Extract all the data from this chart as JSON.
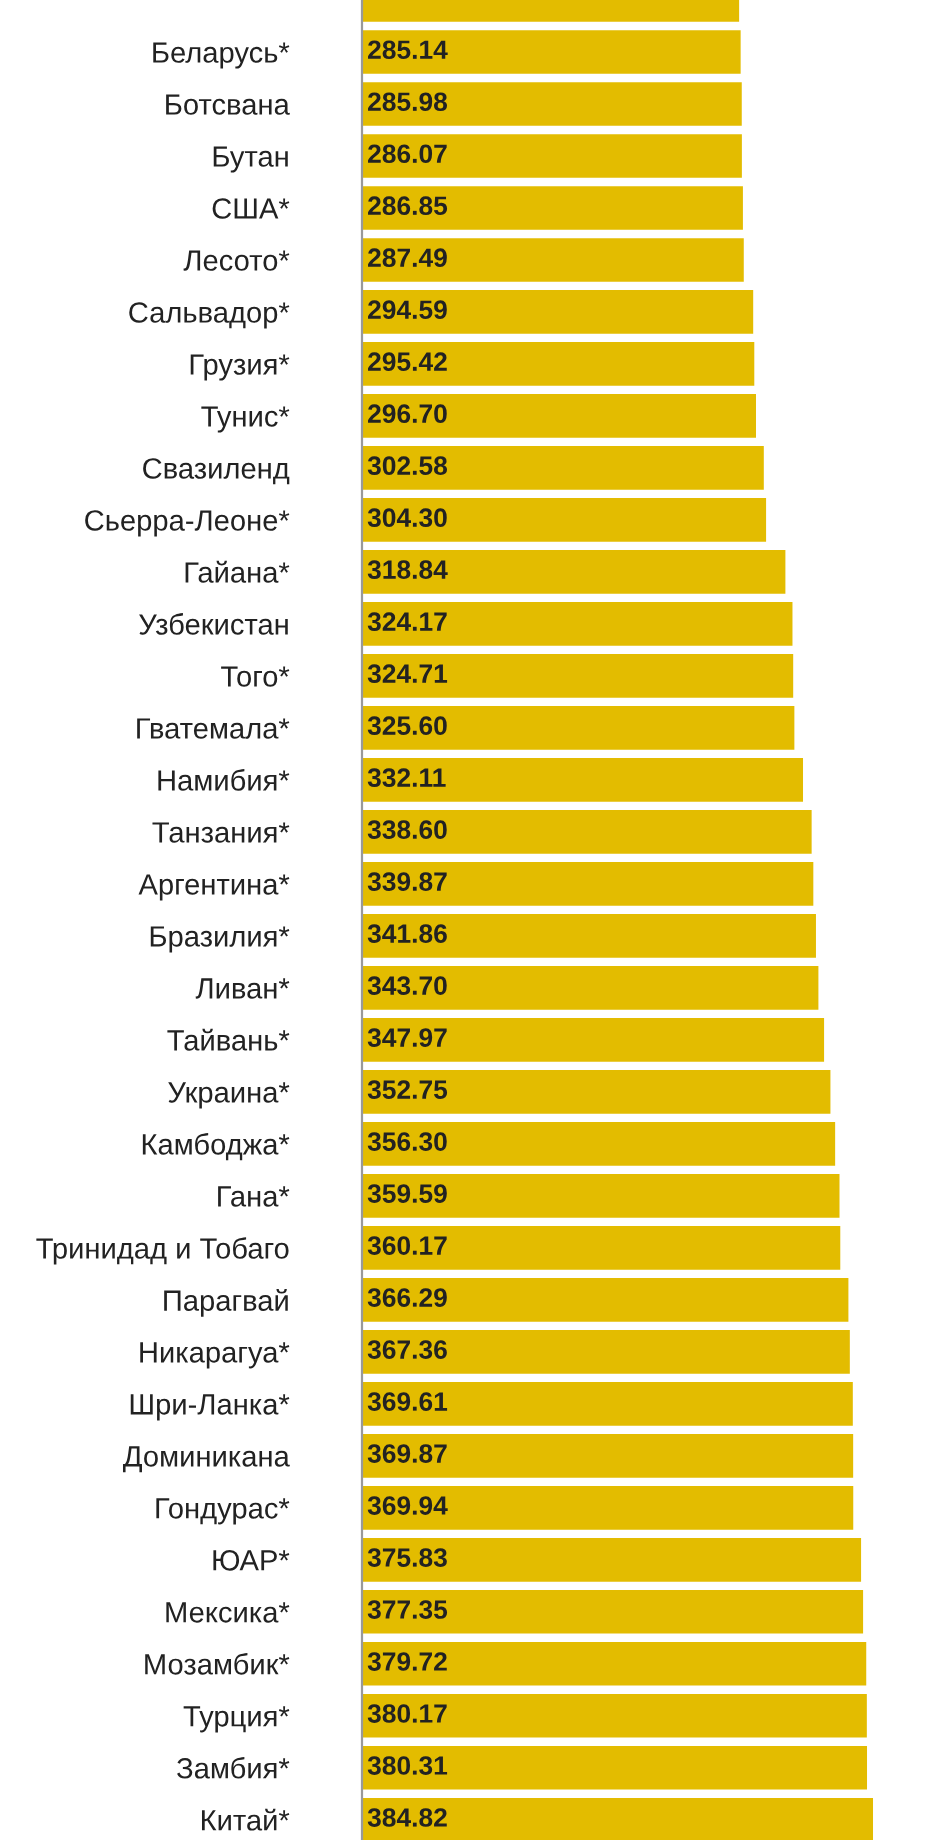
{
  "chart_data": {
    "type": "bar",
    "orientation": "horizontal",
    "tick_labels": "y",
    "grid": false,
    "legend": false,
    "categories": [
      null,
      "Беларусь*",
      "Ботсвана",
      "Бутан",
      "США*",
      "Лесото*",
      "Сальвадор*",
      "Грузия*",
      "Тунис*",
      "Свазиленд",
      "Сьерра-Леоне*",
      "Гайана*",
      "Узбекистан",
      "Того*",
      "Гватемала*",
      "Намибия*",
      "Танзания*",
      "Аргентина*",
      "Бразилия*",
      "Ливан*",
      "Тайвань*",
      "Украина*",
      "Камбоджа*",
      "Гана*",
      "Тринидад и Тобаго",
      "Парагвай",
      "Никарагуа*",
      "Шри-Ланка*",
      "Доминикана",
      "Гондурас*",
      "ЮАР*",
      "Мексика*",
      "Мозамбик*",
      "Турция*",
      "Замбия*",
      "Китай*"
    ],
    "values": [
      284,
      285.14,
      285.98,
      286.07,
      286.85,
      287.49,
      294.59,
      295.42,
      296.7,
      302.58,
      304.3,
      318.84,
      324.17,
      324.71,
      325.6,
      332.11,
      338.6,
      339.87,
      341.86,
      343.7,
      347.97,
      352.75,
      356.3,
      359.59,
      360.17,
      366.29,
      367.36,
      369.61,
      369.87,
      369.94,
      375.83,
      377.35,
      379.72,
      380.17,
      380.31,
      384.82
    ],
    "value_labels": [
      null,
      "285.14",
      "285.98",
      "286.07",
      "286.85",
      "287.49",
      "294.59",
      "295.42",
      "296.70",
      "302.58",
      "304.30",
      "318.84",
      "324.17",
      "324.71",
      "325.60",
      "332.11",
      "338.60",
      "339.87",
      "341.86",
      "343.70",
      "347.97",
      "352.75",
      "356.30",
      "359.59",
      "360.17",
      "366.29",
      "367.36",
      "369.61",
      "369.87",
      "369.94",
      "375.83",
      "377.35",
      "379.72",
      "380.17",
      "380.31",
      "384.82"
    ],
    "color": "#e3bc00"
  }
}
